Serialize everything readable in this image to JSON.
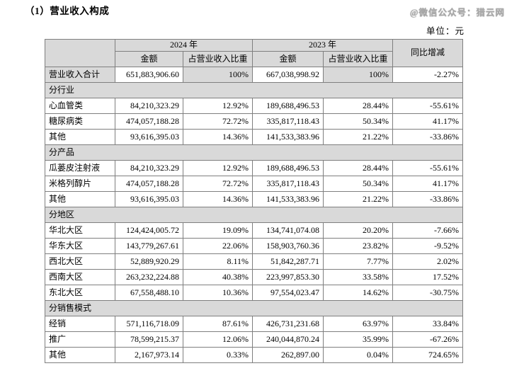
{
  "page": {
    "title": "（1）营业收入构成",
    "watermark": "@微信公众号：猎云网",
    "unit_label": "单位：元"
  },
  "colors": {
    "shaded_bg": "#d9d9d9",
    "border": "#7f7f7f",
    "watermark_gray": "#a8a8a8"
  },
  "table": {
    "header": {
      "year_2024": "2024 年",
      "year_2023": "2023 年",
      "amount_label": "金额",
      "ratio_label": "占营业收入比重",
      "yoy_label": "同比增减"
    },
    "rows": [
      {
        "type": "total",
        "label": "营业收入合计",
        "a2024": "651,883,906.60",
        "r2024": "100%",
        "a2023": "667,038,998.92",
        "r2023": "100%",
        "yoy": "-2.27%"
      },
      {
        "type": "section",
        "label": "分行业"
      },
      {
        "type": "data",
        "label": "心血管类",
        "a2024": "84,210,323.29",
        "r2024": "12.92%",
        "a2023": "189,688,496.53",
        "r2023": "28.44%",
        "yoy": "-55.61%"
      },
      {
        "type": "data",
        "label": "糖尿病类",
        "a2024": "474,057,188.28",
        "r2024": "72.72%",
        "a2023": "335,817,118.43",
        "r2023": "50.34%",
        "yoy": "41.17%"
      },
      {
        "type": "data",
        "label": "其他",
        "a2024": "93,616,395.03",
        "r2024": "14.36%",
        "a2023": "141,533,383.96",
        "r2023": "21.22%",
        "yoy": "-33.86%"
      },
      {
        "type": "section",
        "label": "分产品"
      },
      {
        "type": "data",
        "label": "瓜蒌皮注射液",
        "a2024": "84,210,323.29",
        "r2024": "12.92%",
        "a2023": "189,688,496.53",
        "r2023": "28.44%",
        "yoy": "-55.61%"
      },
      {
        "type": "data",
        "label": "米格列醇片",
        "a2024": "474,057,188.28",
        "r2024": "72.72%",
        "a2023": "335,817,118.43",
        "r2023": "50.34%",
        "yoy": "41.17%"
      },
      {
        "type": "data",
        "label": "其他",
        "a2024": "93,616,395.03",
        "r2024": "14.36%",
        "a2023": "141,533,383.96",
        "r2023": "21.22%",
        "yoy": "-33.86%"
      },
      {
        "type": "section",
        "label": "分地区"
      },
      {
        "type": "data",
        "label": "华北大区",
        "a2024": "124,424,005.72",
        "r2024": "19.09%",
        "a2023": "134,741,074.08",
        "r2023": "20.20%",
        "yoy": "-7.66%"
      },
      {
        "type": "data",
        "label": "华东大区",
        "a2024": "143,779,267.61",
        "r2024": "22.06%",
        "a2023": "158,903,760.36",
        "r2023": "23.82%",
        "yoy": "-9.52%"
      },
      {
        "type": "data",
        "label": "西北大区",
        "a2024": "52,889,920.29",
        "r2024": "8.11%",
        "a2023": "51,842,287.71",
        "r2023": "7.77%",
        "yoy": "2.02%"
      },
      {
        "type": "data",
        "label": "西南大区",
        "a2024": "263,232,224.88",
        "r2024": "40.38%",
        "a2023": "223,997,853.30",
        "r2023": "33.58%",
        "yoy": "17.52%"
      },
      {
        "type": "data",
        "label": "东北大区",
        "a2024": "67,558,488.10",
        "r2024": "10.36%",
        "a2023": "97,554,023.47",
        "r2023": "14.62%",
        "yoy": "-30.75%"
      },
      {
        "type": "section",
        "label": "分销售模式"
      },
      {
        "type": "data",
        "label": "经销",
        "a2024": "571,116,718.09",
        "r2024": "87.61%",
        "a2023": "426,731,231.68",
        "r2023": "63.97%",
        "yoy": "33.84%"
      },
      {
        "type": "data",
        "label": "推广",
        "a2024": "78,599,215.37",
        "r2024": "12.06%",
        "a2023": "240,044,870.24",
        "r2023": "35.99%",
        "yoy": "-67.26%"
      },
      {
        "type": "data",
        "label": "其他",
        "a2024": "2,167,973.14",
        "r2024": "0.33%",
        "a2023": "262,897.00",
        "r2023": "0.04%",
        "yoy": "724.65%"
      }
    ]
  }
}
